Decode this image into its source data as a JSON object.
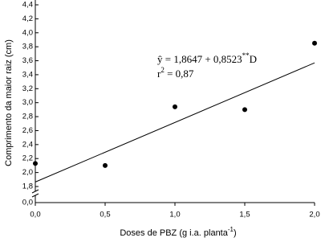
{
  "chart_data": {
    "type": "scatter",
    "x_label": {
      "text": "Doses de PBZ (g i.a. planta",
      "sup": "-1",
      "end": ")"
    },
    "y_label": "Comprimento da maior raiz (cm)",
    "x": [
      0,
      0.5,
      1.0,
      1.5,
      2.0
    ],
    "values": [
      2.13,
      2.1,
      2.94,
      2.9,
      3.85
    ],
    "color": "#000000",
    "fit": {
      "intercept": 1.8647,
      "slope": 0.8523
    },
    "equation": {
      "lhs": "ŷ = 1,8647 + 0,8523",
      "sup": "**",
      "rhs": "D"
    },
    "r2": {
      "r": "r",
      "sup": "2",
      "rest": " = 0,87"
    },
    "xlim": [
      0,
      2
    ],
    "xticks": [
      {
        "value": 0,
        "label": "0,0"
      },
      {
        "value": 0.5,
        "label": "0,5"
      },
      {
        "value": 1,
        "label": "1,0"
      },
      {
        "value": 1.5,
        "label": "1,5"
      },
      {
        "value": 2,
        "label": "2,0"
      }
    ],
    "ylim": [
      1.8,
      4.4
    ],
    "axis_break": true,
    "yticks": [
      {
        "value": 0,
        "label": "0,0"
      },
      {
        "value": 1.8,
        "label": "1,8"
      },
      {
        "value": 2.0,
        "label": "2,0"
      },
      {
        "value": 2.2,
        "label": "2,2"
      },
      {
        "value": 2.4,
        "label": "2,4"
      },
      {
        "value": 2.6,
        "label": "2,6"
      },
      {
        "value": 2.8,
        "label": "2,8"
      },
      {
        "value": 3.0,
        "label": "3,0"
      },
      {
        "value": 3.2,
        "label": "3,2"
      },
      {
        "value": 3.4,
        "label": "3,4"
      },
      {
        "value": 3.6,
        "label": "3,6"
      },
      {
        "value": 3.8,
        "label": "3,8"
      },
      {
        "value": 4.0,
        "label": "4,0"
      },
      {
        "value": 4.2,
        "label": "4,2"
      },
      {
        "value": 4.4,
        "label": "4,4"
      }
    ]
  }
}
